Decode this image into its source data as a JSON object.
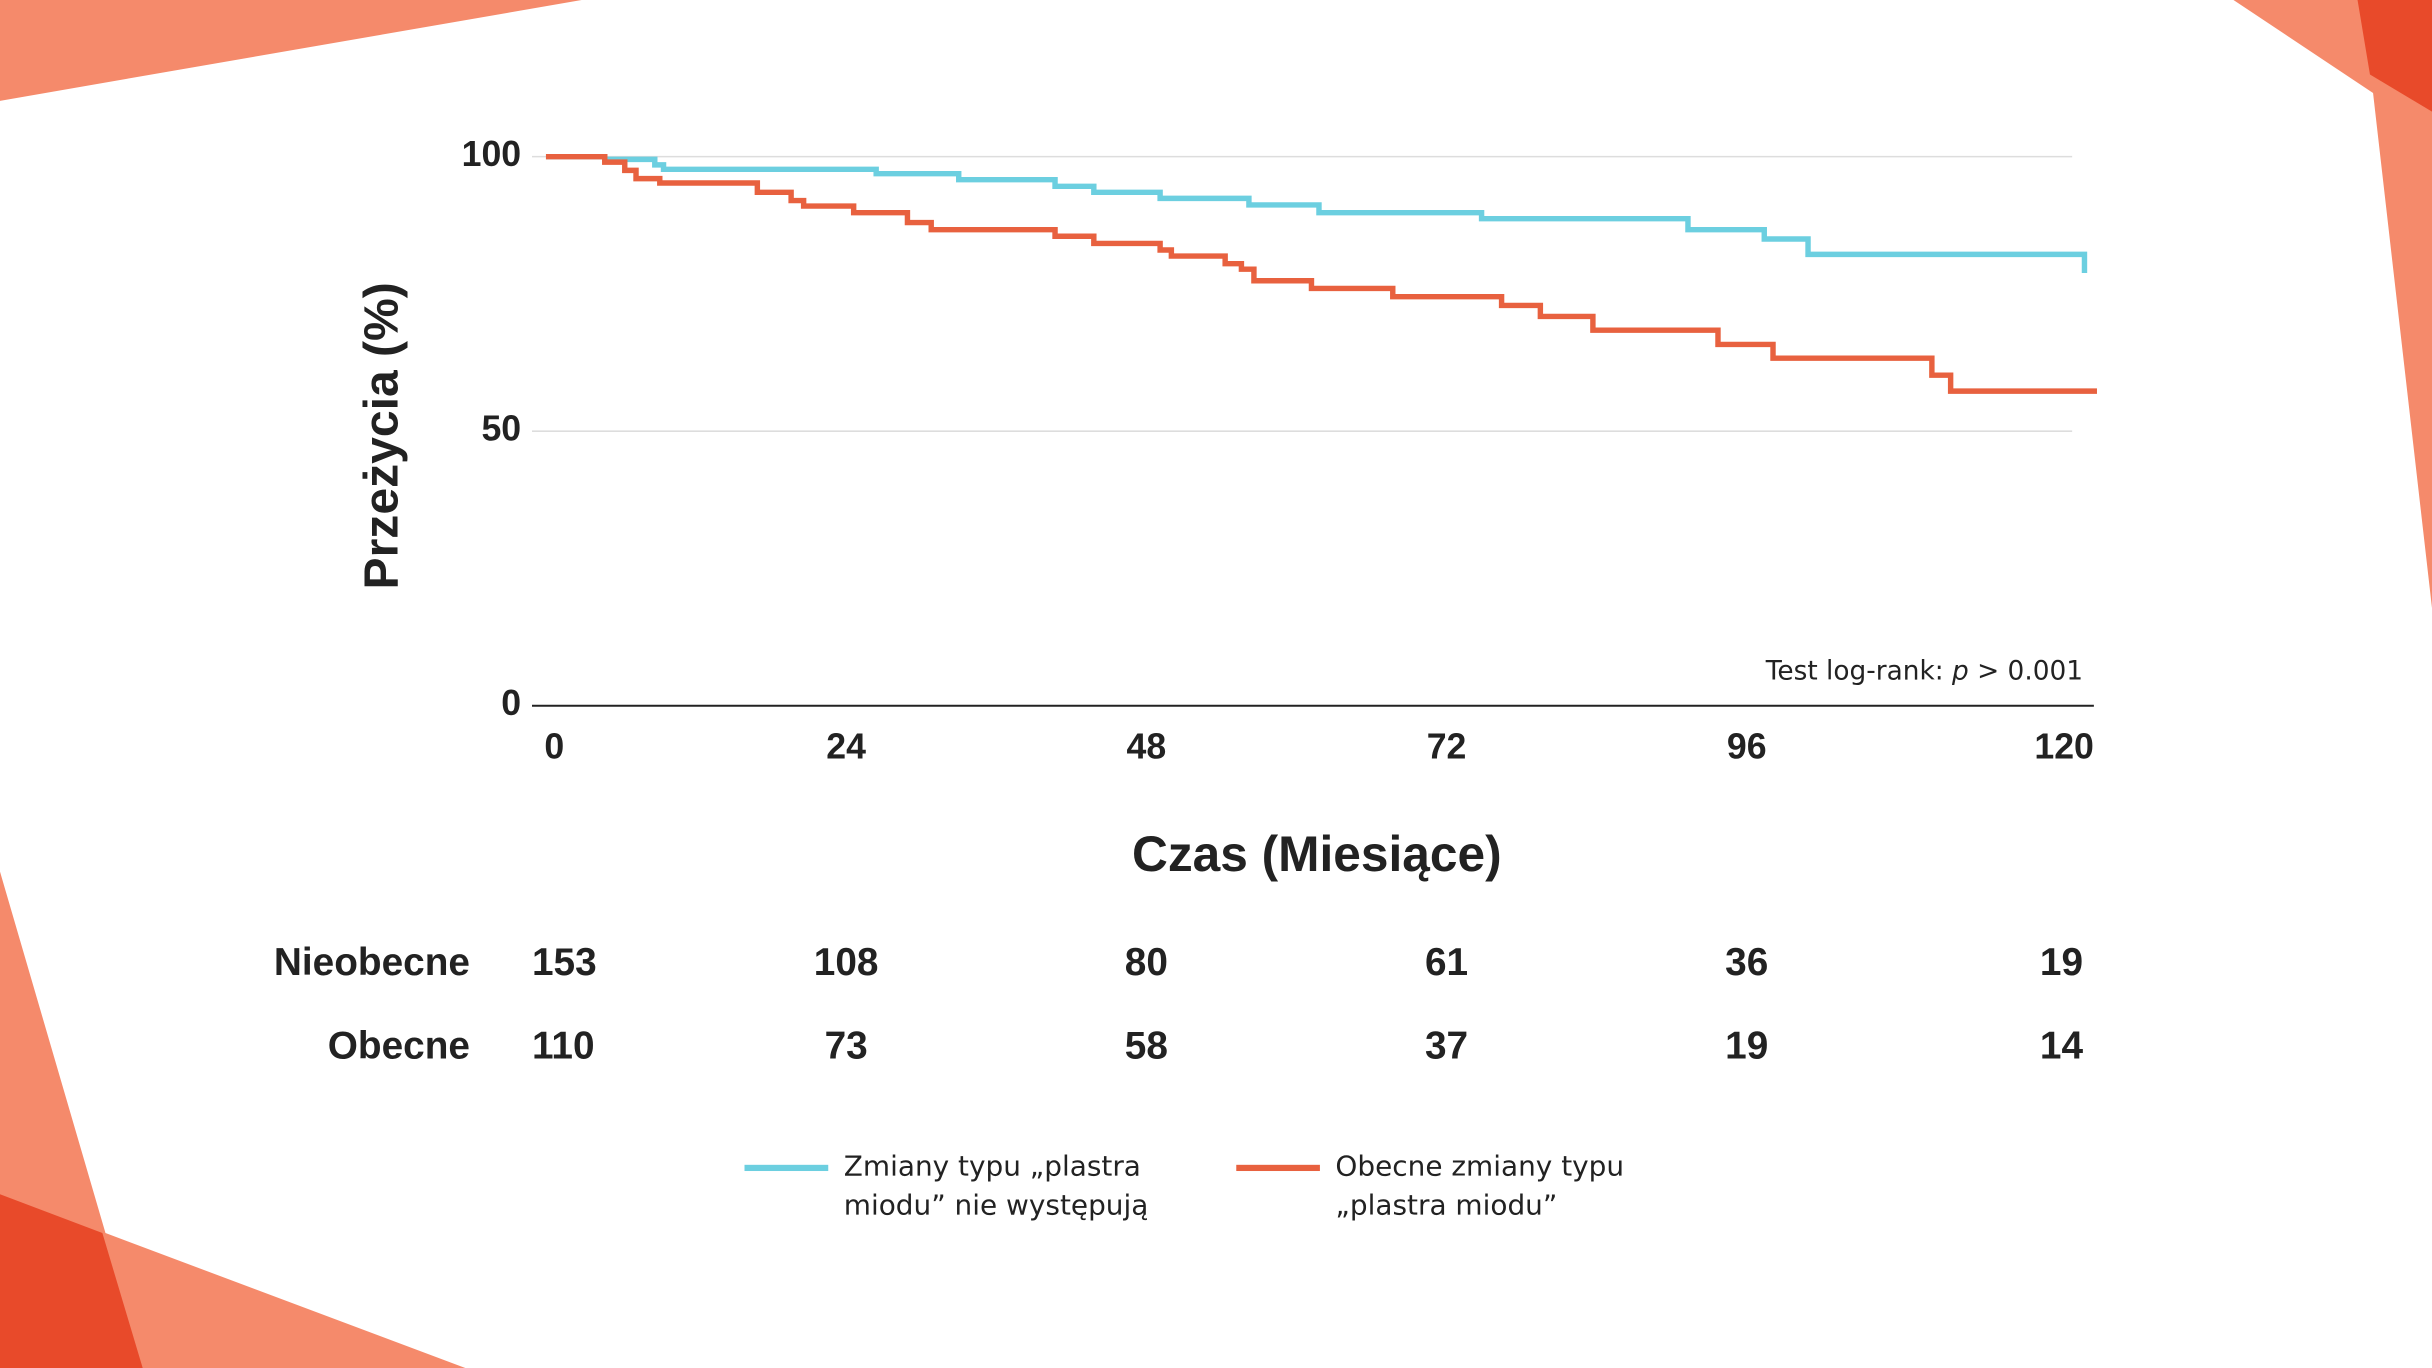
{
  "chart_data": {
    "type": "step",
    "x_label": "Czas (Miesiące)",
    "y_label": "Przeżycia (%)",
    "annotation": [
      "Test log-rank: ",
      "p",
      " > 0.001"
    ],
    "xlim": [
      0,
      124
    ],
    "xticks": [
      0,
      24,
      48,
      72,
      96,
      120
    ],
    "ylim": [
      0,
      100
    ],
    "yticks": [
      0,
      50,
      100
    ],
    "grid": true,
    "series": [
      {
        "name": "Zmiany typu „plastra miodu” nie występują",
        "color": "#6ccfe0",
        "x": [
          0,
          4.7,
          8.7,
          9.4,
          26.4,
          33,
          40.7,
          43.8,
          49.1,
          56.2,
          61.8,
          74.8,
          91.3,
          97.4,
          100.9,
          123
        ],
        "values": [
          100,
          99.5,
          98.5,
          97.7,
          96.9,
          95.8,
          94.6,
          93.5,
          92.4,
          91.2,
          89.8,
          88.7,
          86.7,
          85,
          82.2,
          78.8
        ]
      },
      {
        "name": "Obecne zmiany typu „plastra miodu”",
        "color": "#e8613f",
        "x": [
          0,
          4.7,
          6.3,
          7.2,
          9.1,
          16.9,
          19.6,
          20.6,
          24.6,
          28.9,
          30.8,
          40.7,
          43.8,
          49.1,
          50,
          54.3,
          55.6,
          56.6,
          61.2,
          67.7,
          76.4,
          79.5,
          83.7,
          93.7,
          98.1,
          110.8,
          112.3,
          124
        ],
        "values": [
          100,
          99,
          97.5,
          96,
          95.2,
          93.5,
          92,
          91,
          89.8,
          88,
          86.7,
          85.5,
          84.2,
          83,
          81.9,
          80.5,
          79.5,
          77.4,
          76,
          74.5,
          72.9,
          70.9,
          68.4,
          65.8,
          63.3,
          60.2,
          57.3,
          57.3
        ]
      }
    ],
    "risk_table": [
      {
        "label": "Nieobecne",
        "values": [
          153,
          108,
          80,
          61,
          36,
          19
        ]
      },
      {
        "label": "Obecne",
        "values": [
          110,
          73,
          58,
          37,
          19,
          14
        ]
      }
    ]
  }
}
